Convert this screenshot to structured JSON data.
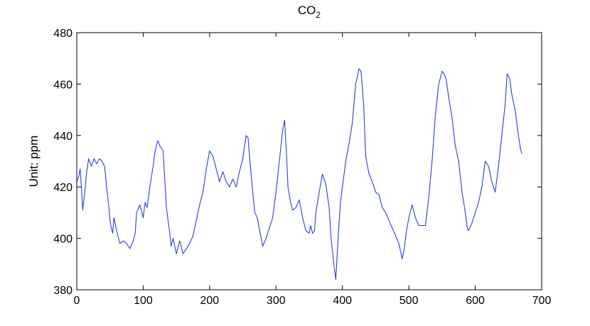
{
  "chart_data": {
    "type": "line",
    "title": "CO",
    "title_subscript": "2",
    "xlabel": "",
    "ylabel": "Unit: ppm",
    "xlim": [
      0,
      700
    ],
    "ylim": [
      380,
      480
    ],
    "xticks": [
      0,
      100,
      200,
      300,
      400,
      500,
      600,
      700
    ],
    "yticks": [
      380,
      400,
      420,
      440,
      460,
      480
    ],
    "grid": false,
    "line_color": "#2b3fe0",
    "series": [
      {
        "x": [
          0,
          3,
          5,
          7,
          9,
          12,
          15,
          18,
          22,
          26,
          30,
          34,
          38,
          42,
          45,
          48,
          50,
          52,
          54,
          56,
          60,
          65,
          70,
          75,
          80,
          85,
          88,
          90,
          95,
          100,
          103,
          106,
          110,
          115,
          118,
          122,
          125,
          130,
          135,
          140,
          142,
          145,
          150,
          155,
          160,
          165,
          170,
          175,
          180,
          185,
          190,
          195,
          200,
          205,
          210,
          215,
          220,
          225,
          230,
          235,
          240,
          245,
          250,
          255,
          258,
          262,
          265,
          268,
          272,
          276,
          280,
          285,
          290,
          295,
          300,
          305,
          310,
          313,
          316,
          318,
          322,
          325,
          330,
          335,
          340,
          345,
          350,
          352,
          355,
          358,
          360,
          365,
          370,
          375,
          380,
          383,
          387,
          390,
          393,
          397,
          400,
          405,
          410,
          415,
          420,
          425,
          428,
          432,
          435,
          440,
          445,
          450,
          455,
          460,
          465,
          470,
          475,
          480,
          485,
          490,
          493,
          496,
          500,
          505,
          510,
          515,
          520,
          525,
          530,
          535,
          540,
          545,
          550,
          553,
          556,
          560,
          565,
          570,
          575,
          580,
          585,
          588,
          590,
          595,
          600,
          605,
          610,
          615,
          620,
          625,
          630,
          635,
          640,
          645,
          648,
          652,
          655,
          660,
          665,
          668,
          670
        ],
        "y": [
          422,
          424,
          427,
          420,
          411,
          418,
          426,
          431,
          428,
          431,
          429,
          431,
          430,
          428,
          420,
          413,
          407,
          404,
          402,
          408,
          403,
          398,
          399,
          398,
          396,
          399,
          402,
          410,
          413,
          408,
          414,
          412,
          420,
          428,
          434,
          438,
          436,
          434,
          412,
          402,
          397,
          400,
          394,
          399,
          394,
          396,
          398,
          401,
          407,
          413,
          418,
          427,
          434,
          432,
          427,
          422,
          426,
          422,
          420,
          423,
          420,
          426,
          431,
          440,
          439,
          426,
          418,
          410,
          408,
          402,
          397,
          400,
          404,
          408,
          418,
          430,
          442,
          446,
          432,
          420,
          414,
          411,
          412,
          415,
          408,
          403,
          402,
          405,
          402,
          403,
          410,
          418,
          425,
          421,
          412,
          400,
          390,
          384,
          398,
          414,
          420,
          430,
          437,
          445,
          460,
          466,
          465,
          452,
          432,
          425,
          422,
          418,
          417,
          412,
          410,
          407,
          404,
          401,
          398,
          392,
          396,
          402,
          408,
          413,
          408,
          405,
          405,
          405,
          416,
          430,
          448,
          460,
          465,
          464,
          462,
          455,
          447,
          436,
          430,
          418,
          410,
          404,
          403,
          406,
          410,
          414,
          420,
          430,
          428,
          422,
          418,
          428,
          440,
          452,
          464,
          462,
          456,
          450,
          440,
          435,
          433
        ]
      }
    ]
  }
}
